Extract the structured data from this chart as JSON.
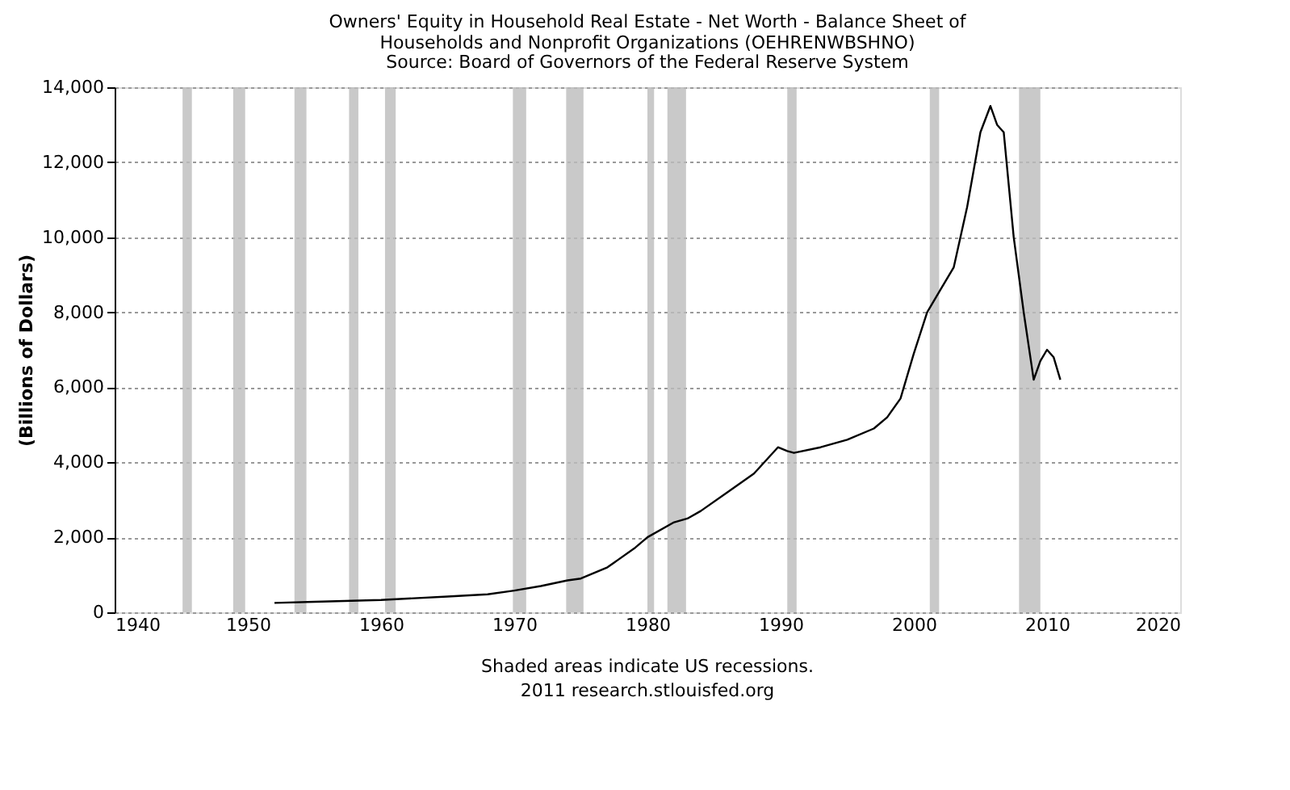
{
  "chart_data": {
    "type": "line",
    "title": [
      "Owners' Equity in Household Real Estate - Net Worth - Balance Sheet of",
      "Households and Nonprofit Organizations (OEHRENWBSHNO)"
    ],
    "subtitle": "Source: Board of Governors of the Federal Reserve System",
    "ylabel": "(Billions of Dollars)",
    "x": [
      1952,
      1955,
      1960,
      1965,
      1968,
      1970,
      1972,
      1974,
      1975,
      1977,
      1979,
      1980,
      1982,
      1983,
      1984,
      1986,
      1988,
      1989.8,
      1990.5,
      1991,
      1993,
      1995,
      1997,
      1998,
      1999,
      2000,
      2001,
      2002,
      2003,
      2004,
      2005,
      2005.75,
      2006.25,
      2006.75,
      2007.5,
      2008.25,
      2009,
      2009.5,
      2010,
      2010.5,
      2011
    ],
    "series": [
      {
        "color": "#000000",
        "values": [
          250,
          280,
          330,
          420,
          480,
          580,
          700,
          850,
          900,
          1200,
          1700,
          2000,
          2400,
          2500,
          2700,
          3200,
          3700,
          4400,
          4300,
          4250,
          4400,
          4600,
          4900,
          5200,
          5700,
          6900,
          8000,
          8600,
          9200,
          10800,
          12800,
          13500,
          13000,
          12800,
          10000,
          8000,
          6200,
          6700,
          7000,
          6800,
          6200
        ]
      }
    ],
    "xlim": [
      1940,
      2020
    ],
    "xticks": [
      1940,
      1950,
      1960,
      1970,
      1980,
      1990,
      2000,
      2010,
      2020
    ],
    "ylim": [
      0,
      14000
    ],
    "yticks": [
      0,
      {
        "value": 2000,
        "label": "2,000"
      },
      {
        "value": 4000,
        "label": "4,000"
      },
      {
        "value": 6000,
        "label": "6,000"
      },
      {
        "value": 8000,
        "label": "8,000"
      },
      {
        "value": 10000,
        "label": "10,000"
      },
      {
        "value": 12000,
        "label": "12,000"
      },
      {
        "value": 14000,
        "label": "14,000"
      }
    ],
    "grid": "y",
    "marker": "none",
    "line_style": "solid",
    "bands": [
      {
        "axis": "x",
        "from": 1945.1,
        "to": 1945.8,
        "color": "#bbbbbb"
      },
      {
        "axis": "x",
        "from": 1948.9,
        "to": 1949.8,
        "color": "#bbbbbb"
      },
      {
        "axis": "x",
        "from": 1953.5,
        "to": 1954.4,
        "color": "#bbbbbb"
      },
      {
        "axis": "x",
        "from": 1957.6,
        "to": 1958.3,
        "color": "#bbbbbb"
      },
      {
        "axis": "x",
        "from": 1960.3,
        "to": 1961.1,
        "color": "#bbbbbb"
      },
      {
        "axis": "x",
        "from": 1969.9,
        "to": 1970.9,
        "color": "#bbbbbb"
      },
      {
        "axis": "x",
        "from": 1973.9,
        "to": 1975.2,
        "color": "#bbbbbb"
      },
      {
        "axis": "x",
        "from": 1980.0,
        "to": 1980.5,
        "color": "#bbbbbb"
      },
      {
        "axis": "x",
        "from": 1981.5,
        "to": 1982.9,
        "color": "#bbbbbb"
      },
      {
        "axis": "x",
        "from": 1990.5,
        "to": 1991.2,
        "color": "#bbbbbb"
      },
      {
        "axis": "x",
        "from": 2001.2,
        "to": 2001.9,
        "color": "#bbbbbb"
      },
      {
        "axis": "x",
        "from": 2007.9,
        "to": 2009.5,
        "color": "#bbbbbb"
      }
    ],
    "annotations": [
      "Shaded areas indicate US recessions.",
      "2011 research.stlouisfed.org"
    ]
  }
}
